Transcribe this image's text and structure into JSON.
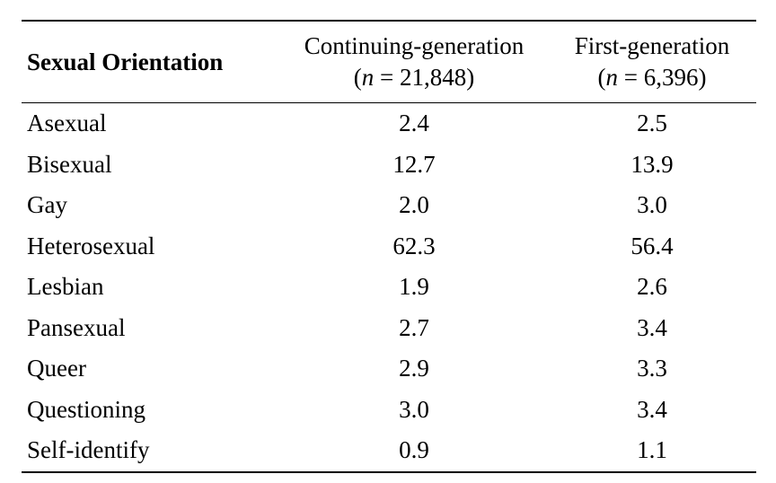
{
  "table": {
    "header": {
      "label": "Sexual Orientation",
      "col1_title": "Continuing-generation",
      "col1_n_var": "n",
      "col1_n_value": "= 21,848)",
      "col2_title": "First-generation",
      "col2_n_var": "n",
      "col2_n_value": "= 6,396)"
    },
    "rows": [
      {
        "label": "Asexual",
        "continuing": "2.4",
        "first": "2.5"
      },
      {
        "label": "Bisexual",
        "continuing": "12.7",
        "first": "13.9"
      },
      {
        "label": "Gay",
        "continuing": "2.0",
        "first": "3.0"
      },
      {
        "label": "Heterosexual",
        "continuing": "62.3",
        "first": "56.4"
      },
      {
        "label": "Lesbian",
        "continuing": "1.9",
        "first": "2.6"
      },
      {
        "label": "Pansexual",
        "continuing": "2.7",
        "first": "3.4"
      },
      {
        "label": "Queer",
        "continuing": "2.9",
        "first": "3.3"
      },
      {
        "label": "Questioning",
        "continuing": "3.0",
        "first": "3.4"
      },
      {
        "label": "Self-identify",
        "continuing": "0.9",
        "first": "1.1"
      }
    ]
  }
}
